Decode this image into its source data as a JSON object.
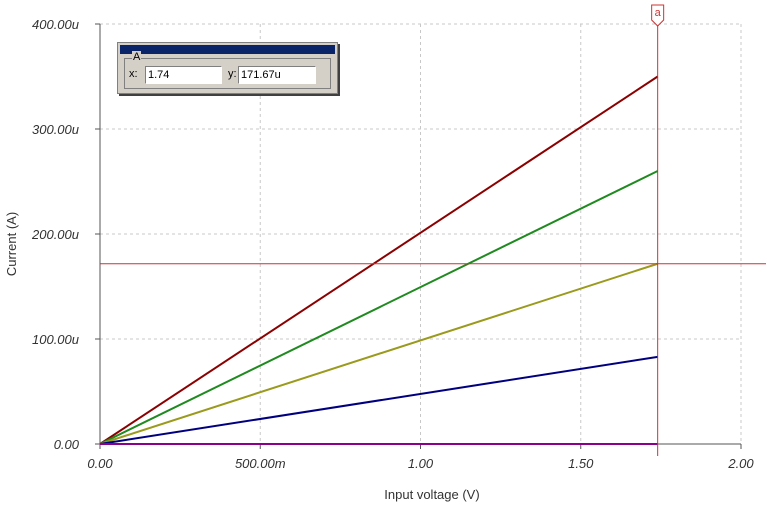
{
  "chart_data": {
    "type": "line",
    "xlabel": "Input voltage (V)",
    "ylabel": "Current (A)",
    "xlim": [
      0,
      2
    ],
    "ylim": [
      0,
      400
    ],
    "x_ticks": [
      {
        "value": 0,
        "label": "0.00"
      },
      {
        "value": 0.5,
        "label": "500.00m"
      },
      {
        "value": 1.0,
        "label": "1.00"
      },
      {
        "value": 1.5,
        "label": "1.50"
      },
      {
        "value": 2.0,
        "label": "2.00"
      }
    ],
    "y_ticks": [
      {
        "value": 0,
        "label": "0.00"
      },
      {
        "value": 100,
        "label": "100.00u"
      },
      {
        "value": 200,
        "label": "200.00u"
      },
      {
        "value": 300,
        "label": "300.00u"
      },
      {
        "value": 400,
        "label": "400.00u"
      }
    ],
    "y_unit_note": "u",
    "grid": true,
    "series": [
      {
        "color": "#8b0000",
        "x": [
          0,
          1.74
        ],
        "y": [
          0,
          350
        ]
      },
      {
        "color": "#1f8a1f",
        "x": [
          0,
          1.74
        ],
        "y": [
          0,
          260
        ]
      },
      {
        "color": "#9a9a1c",
        "x": [
          0,
          1.74
        ],
        "y": [
          0,
          171.67
        ]
      },
      {
        "color": "#00007f",
        "x": [
          0,
          1.74
        ],
        "y": [
          0,
          83
        ]
      },
      {
        "color": "#8b008b",
        "x": [
          0,
          1.74
        ],
        "y": [
          0,
          0
        ]
      }
    ],
    "cursor": {
      "label": "a",
      "x": 1.74,
      "y": 171.67,
      "color": "#cc3333"
    }
  },
  "cursor_panel": {
    "group_label": "A",
    "x_label": "x:",
    "x_value": "1.74",
    "y_label": "y:",
    "y_value": "171.67u"
  }
}
